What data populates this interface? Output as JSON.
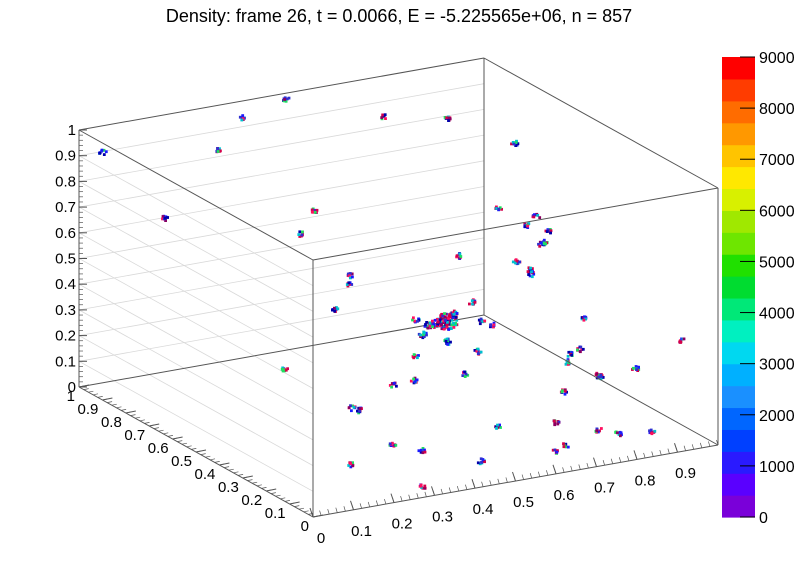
{
  "chart_data": {
    "type": "scatter",
    "title": "Density: frame 26, t = 0.0066, E = -5.225565e+06, n = 857",
    "xlabel": "",
    "ylabel": "",
    "zlabel": "",
    "xlim": [
      0,
      1
    ],
    "ylim": [
      0,
      1
    ],
    "zlim": [
      0,
      1
    ],
    "x_ticks": [
      "0",
      "0.1",
      "0.2",
      "0.3",
      "0.4",
      "0.5",
      "0.6",
      "0.7",
      "0.8",
      "0.9"
    ],
    "y_ticks": [
      "0",
      "0.1",
      "0.2",
      "0.3",
      "0.4",
      "0.5",
      "0.6",
      "0.7",
      "0.8",
      "0.9",
      "1"
    ],
    "z_ticks": [
      "0",
      "0.1",
      "0.2",
      "0.3",
      "0.4",
      "0.5",
      "0.6",
      "0.7",
      "0.8",
      "0.9",
      "1"
    ],
    "colorbar": {
      "range": [
        0,
        9000
      ],
      "labels": [
        "0",
        "1000",
        "2000",
        "3000",
        "4000",
        "5000",
        "6000",
        "7000",
        "8000",
        "9000"
      ],
      "colors": [
        "#7a00d9",
        "#5a00ff",
        "#2a1aff",
        "#0040ff",
        "#0066ff",
        "#1a90ff",
        "#00b0ff",
        "#00d8f0",
        "#00f0c0",
        "#00e878",
        "#00dc30",
        "#20e000",
        "#6ee600",
        "#a0e800",
        "#d8f000",
        "#ffe800",
        "#ffc400",
        "#ff9800",
        "#ff6c00",
        "#ff3c00",
        "#ff0000"
      ]
    },
    "particle_colors": [
      "#1a1aff",
      "#0000aa",
      "#d4004a",
      "#8a0060",
      "#00c0d0",
      "#3030d0",
      "#ff1060",
      "#20e060"
    ],
    "clusters": [
      [
        0.03,
        0.95,
        0.93,
        1.0
      ],
      [
        0.15,
        0.38,
        0.34,
        1.0
      ],
      [
        0.13,
        0.86,
        0.69,
        1.0
      ],
      [
        0.25,
        0.84,
        0.93,
        1.0
      ],
      [
        0.12,
        0.04,
        0.37,
        1.0
      ],
      [
        0.16,
        0.08,
        0.33,
        1.0
      ],
      [
        0.35,
        0.66,
        0.67,
        1.0
      ],
      [
        0.35,
        0.6,
        0.79,
        1.0
      ],
      [
        0.4,
        0.99,
        0.94,
        1.0
      ],
      [
        0.5,
        0.98,
        0.99,
        1.0
      ],
      [
        0.65,
        0.82,
        0.96,
        1.0
      ],
      [
        0.28,
        0.39,
        0.53,
        1.0
      ],
      [
        0.42,
        0.57,
        0.5,
        1.0
      ],
      [
        0.45,
        0.62,
        0.5,
        1.0
      ],
      [
        0.39,
        0.24,
        0.3,
        1.0
      ],
      [
        0.44,
        0.32,
        0.34,
        1.0
      ],
      [
        0.49,
        0.38,
        0.38,
        1.2
      ],
      [
        0.52,
        0.4,
        0.4,
        1.6
      ],
      [
        0.56,
        0.4,
        0.4,
        3.2
      ],
      [
        0.59,
        0.42,
        0.41,
        1.4
      ],
      [
        0.53,
        0.34,
        0.36,
        1.2
      ],
      [
        0.58,
        0.3,
        0.33,
        1.1
      ],
      [
        0.53,
        0.27,
        0.27,
        1.0
      ],
      [
        0.64,
        0.43,
        0.44,
        1.0
      ],
      [
        0.67,
        0.44,
        0.35,
        1.0
      ],
      [
        0.72,
        0.62,
        0.5,
        1.0
      ],
      [
        0.83,
        0.34,
        0.23,
        1.0
      ],
      [
        0.6,
        0.47,
        0.35,
        1.0
      ],
      [
        0.84,
        0.66,
        0.63,
        1.0
      ],
      [
        0.91,
        0.62,
        0.6,
        1.0
      ],
      [
        0.83,
        0.52,
        0.64,
        1.0
      ],
      [
        0.78,
        0.48,
        0.53,
        1.0
      ],
      [
        0.81,
        0.47,
        0.48,
        1.0
      ],
      [
        0.83,
        0.51,
        0.47,
        1.0
      ],
      [
        0.87,
        0.53,
        0.55,
        1.0
      ],
      [
        0.9,
        0.57,
        0.53,
        1.0
      ],
      [
        0.93,
        0.6,
        0.55,
        1.0
      ],
      [
        0.96,
        0.8,
        0.78,
        1.0
      ],
      [
        0.86,
        0.91,
        0.85,
        1.0
      ],
      [
        0.96,
        0.5,
        0.25,
        1.0
      ],
      [
        0.94,
        0.4,
        0.08,
        1.0
      ],
      [
        0.96,
        0.52,
        0.12,
        1.0
      ],
      [
        0.72,
        0.16,
        0.32,
        1.0
      ],
      [
        0.82,
        0.2,
        0.22,
        1.0
      ],
      [
        0.86,
        0.11,
        0.28,
        1.0
      ],
      [
        0.98,
        0.12,
        0.35,
        1.0
      ],
      [
        0.33,
        0.23,
        0.07,
        1.0
      ],
      [
        0.22,
        0.22,
        0.03,
        1.0
      ],
      [
        0.45,
        0.06,
        0.06,
        1.0
      ],
      [
        0.3,
        0.05,
        0.01,
        1.0
      ],
      [
        0.62,
        0.04,
        0.06,
        1.0
      ],
      [
        0.58,
        0.21,
        0.08,
        1.0
      ],
      [
        0.67,
        0.08,
        0.05,
        1.0
      ],
      [
        0.74,
        0.06,
        0.1,
        1.0
      ],
      [
        0.8,
        0.08,
        0.06,
        1.0
      ],
      [
        0.87,
        0.06,
        0.06,
        1.0
      ],
      [
        0.42,
        0.26,
        0.01,
        1.0
      ],
      [
        0.36,
        0.28,
        0.27,
        1.0
      ],
      [
        0.45,
        0.34,
        0.47,
        1.0
      ],
      [
        0.7,
        0.14,
        0.22,
        1.0
      ],
      [
        0.48,
        0.06,
        0.58,
        1.0
      ],
      [
        0.6,
        0.0,
        0.2,
        1.0
      ]
    ]
  }
}
